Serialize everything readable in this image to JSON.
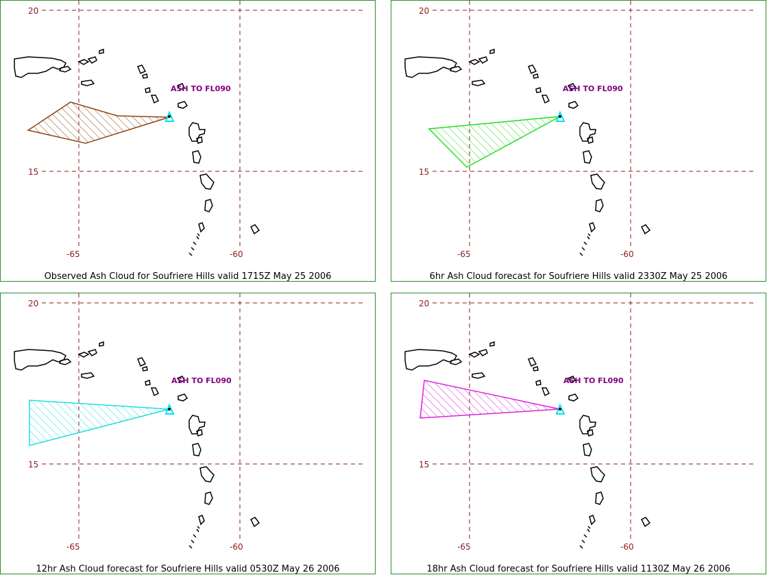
{
  "map": {
    "lat_labels": [
      "20",
      "15"
    ],
    "lon_labels": [
      "-65",
      "-60"
    ],
    "colors": {
      "grid": "#8b1a1a",
      "land": "#000000",
      "frame": "#2e8b2e",
      "volcano": "#00e5ee"
    }
  },
  "panels": [
    {
      "caption": "Observed Ash Cloud for Soufriere  Hills valid 1715Z May 25 2006",
      "ash_label": "ASH TO FL090",
      "color": "#8b4513"
    },
    {
      "caption": "6hr Ash Cloud forecast for Soufriere  Hills valid 2330Z May 25 2006",
      "ash_label": "ASH TO FL090",
      "color": "#22dd22"
    },
    {
      "caption": "12hr Ash Cloud forecast for Soufriere  Hills valid 0530Z May 26 2006",
      "ash_label": "ASH TO FL090",
      "color": "#22dddd"
    },
    {
      "caption": "18hr Ash Cloud forecast for Soufriere  Hills valid 1130Z May 26 2006",
      "ash_label": "ASH TO FL090",
      "color": "#dd22dd"
    }
  ]
}
